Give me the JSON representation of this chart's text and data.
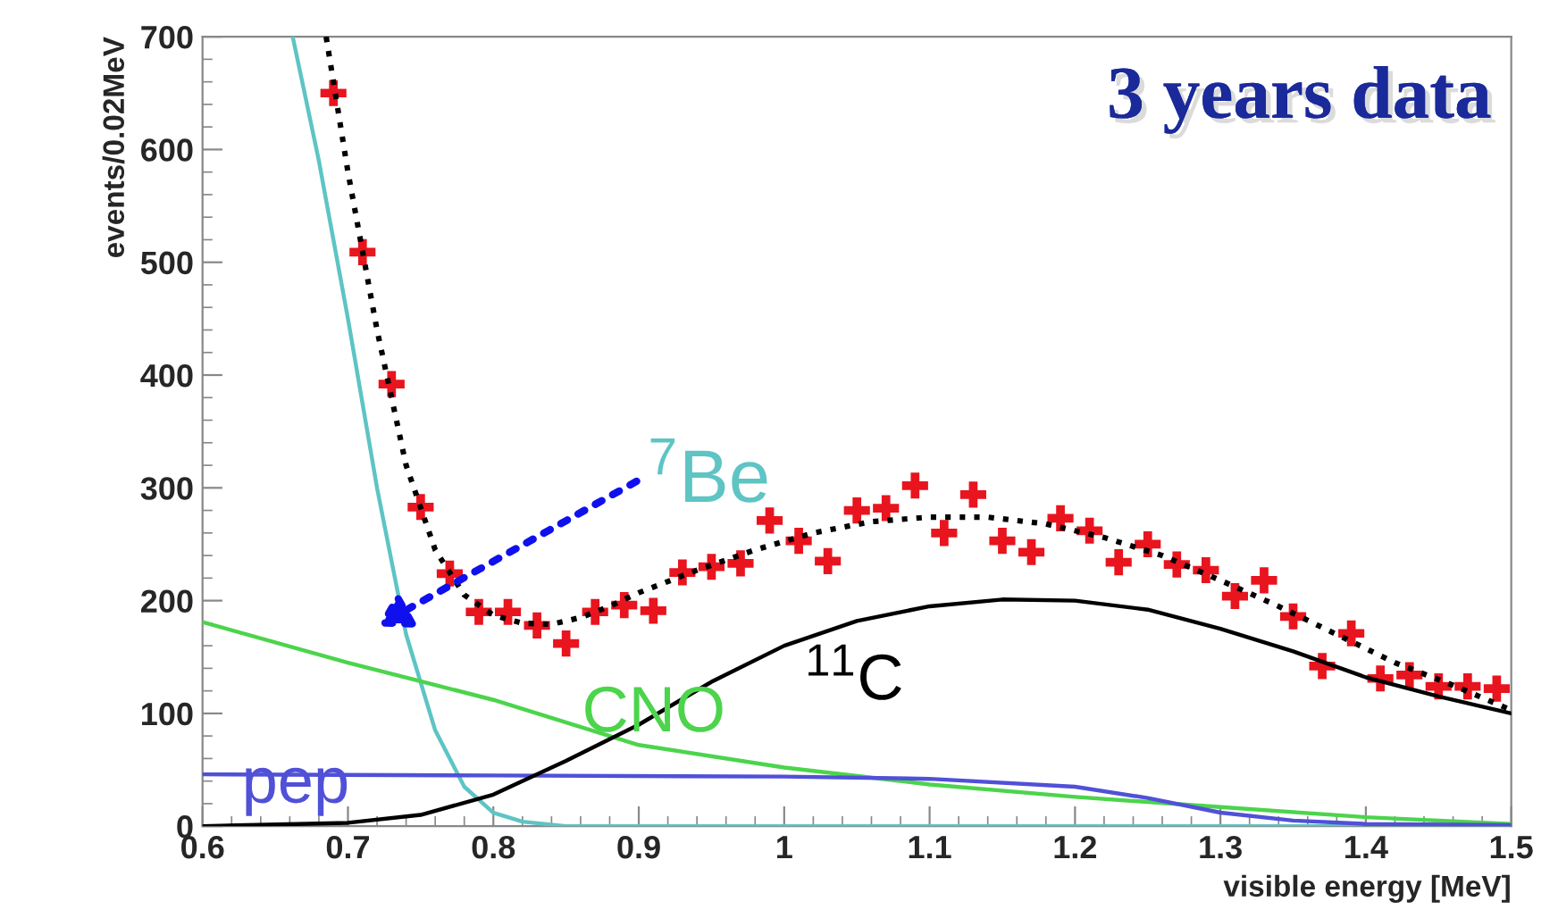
{
  "chart_data": {
    "type": "line",
    "xlabel": "visible energy [MeV]",
    "ylabel": "events/0.02MeV",
    "xlim": [
      0.6,
      1.5
    ],
    "ylim": [
      0,
      700
    ],
    "xticks": [
      0.6,
      0.7,
      0.8,
      0.9,
      1,
      1.1,
      1.2,
      1.3,
      1.4,
      1.5
    ],
    "yticks": [
      0,
      100,
      200,
      300,
      400,
      500,
      600,
      700
    ],
    "grid": false,
    "legend": false,
    "annotations": [
      "3 years data"
    ],
    "series": [
      {
        "type": "scatter",
        "marker": "cross",
        "color": "#e8141e",
        "x": [
          0.69,
          0.71,
          0.73,
          0.75,
          0.77,
          0.79,
          0.81,
          0.83,
          0.85,
          0.87,
          0.89,
          0.91,
          0.93,
          0.95,
          0.97,
          0.99,
          1.01,
          1.03,
          1.05,
          1.07,
          1.09,
          1.11,
          1.13,
          1.15,
          1.17,
          1.19,
          1.21,
          1.23,
          1.25,
          1.27,
          1.29,
          1.31,
          1.33,
          1.35,
          1.37,
          1.39,
          1.41,
          1.43,
          1.45,
          1.47,
          1.49
        ],
        "values": [
          650,
          509,
          392,
          283,
          224,
          190,
          190,
          178,
          162,
          190,
          196,
          191,
          225,
          230,
          233,
          271,
          253,
          235,
          280,
          282,
          302,
          260,
          294,
          253,
          243,
          273,
          262,
          234,
          250,
          232,
          227,
          204,
          218,
          186,
          142,
          171,
          131,
          134,
          124,
          124,
          122
        ]
      },
      {
        "line_style": "dotted",
        "color": "#000000",
        "x": [
          0.685,
          0.7,
          0.72,
          0.74,
          0.76,
          0.78,
          0.8,
          0.82,
          0.84,
          0.86,
          0.88,
          0.9,
          0.94,
          0.98,
          1.02,
          1.06,
          1.1,
          1.14,
          1.18,
          1.22,
          1.26,
          1.3,
          1.34,
          1.38,
          1.42,
          1.46,
          1.5
        ],
        "values": [
          700,
          580,
          440,
          320,
          245,
          205,
          187,
          180,
          179,
          185,
          195,
          207,
          227,
          245,
          260,
          270,
          274,
          274,
          268,
          256,
          240,
          218,
          195,
          170,
          145,
          125,
          103
        ]
      },
      {
        "name": "$^{7}$Be",
        "color": "#5ec4c4",
        "x": [
          0.662,
          0.68,
          0.7,
          0.72,
          0.74,
          0.76,
          0.78,
          0.8,
          0.82,
          0.85,
          1.5
        ],
        "values": [
          700,
          590,
          450,
          300,
          170,
          85,
          35,
          12,
          4,
          0,
          0
        ]
      },
      {
        "name": "CNO",
        "color": "#4cd44c",
        "x": [
          0.6,
          0.7,
          0.8,
          0.9,
          1.0,
          1.1,
          1.2,
          1.3,
          1.4,
          1.5
        ],
        "values": [
          181,
          145,
          112,
          72,
          52,
          37,
          26,
          17,
          8,
          2
        ]
      },
      {
        "name": "pep",
        "color": "#5050d8",
        "x": [
          0.6,
          0.8,
          1.0,
          1.1,
          1.2,
          1.25,
          1.3,
          1.35,
          1.4,
          1.5
        ],
        "values": [
          46,
          45,
          44,
          42,
          35,
          25,
          12,
          5,
          2,
          1
        ]
      },
      {
        "name": "$^{11}$C",
        "color": "#000000",
        "x": [
          0.6,
          0.7,
          0.75,
          0.8,
          0.85,
          0.9,
          0.95,
          1.0,
          1.05,
          1.1,
          1.15,
          1.2,
          1.25,
          1.3,
          1.35,
          1.4,
          1.45,
          1.5
        ],
        "values": [
          0,
          3,
          10,
          28,
          58,
          90,
          128,
          160,
          182,
          195,
          201,
          200,
          192,
          175,
          155,
          132,
          115,
          100
        ]
      }
    ]
  }
}
